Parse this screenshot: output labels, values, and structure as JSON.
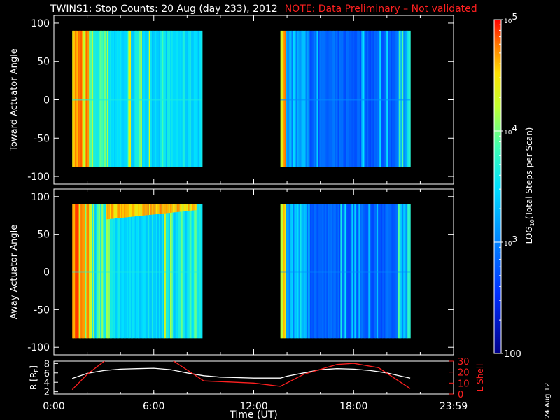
{
  "title": {
    "main": "TWINS1: Stop Counts: 20 Aug (day 233), 2012",
    "note": "NOTE: Data Preliminary – Not validated",
    "note_color": "#ff2020"
  },
  "date_stamp": "24 Aug 12",
  "chart_data": [
    {
      "type": "heatmap",
      "ylabel": "Toward Actuator Angle",
      "xlim": [
        0,
        24
      ],
      "ylim": [
        -110,
        110
      ],
      "yticks": [
        -100,
        -50,
        0,
        50,
        100
      ],
      "data_blocks": [
        {
          "x_start": 1.1,
          "x_end": 8.9,
          "y_start": -88,
          "y_end": 90,
          "dominant": "cyan-yellow-red"
        },
        {
          "x_start": 13.6,
          "x_end": 21.4,
          "y_start": -88,
          "y_end": 90,
          "dominant": "blue"
        }
      ],
      "note": "no data between 8.9 and 13.6 UT"
    },
    {
      "type": "heatmap",
      "ylabel": "Away Actuator Angle",
      "xlim": [
        0,
        24
      ],
      "ylim": [
        -110,
        110
      ],
      "yticks": [
        -100,
        -50,
        0,
        50,
        100
      ],
      "data_blocks": [
        {
          "x_start": 1.1,
          "x_end": 8.9,
          "y_start": -88,
          "y_end": 90,
          "dominant": "cyan-yellow-red"
        },
        {
          "x_start": 13.6,
          "x_end": 21.4,
          "y_start": -88,
          "y_end": 90,
          "dominant": "blue"
        }
      ]
    },
    {
      "type": "line",
      "xlabel": "Time (UT)",
      "xlim": [
        0,
        24
      ],
      "xticks": [
        "0:00",
        "6:00",
        "12:00",
        "18:00",
        "23:59"
      ],
      "xtick_values": [
        0,
        6,
        12,
        18,
        24
      ],
      "left_axis": {
        "label": "R [R",
        "label_sub": "E",
        "label_end": "]",
        "ylim": [
          1.5,
          8.5
        ],
        "yticks": [
          2,
          4,
          6,
          8
        ],
        "color": "#ffffff"
      },
      "right_axis": {
        "label": "L Shell",
        "ylim": [
          0,
          30
        ],
        "yticks": [
          0,
          10,
          20,
          30
        ],
        "color": "#ff2020"
      },
      "series": [
        {
          "axis": "left",
          "color": "#ffffff",
          "x": [
            1.1,
            2,
            3,
            4,
            5,
            6,
            7,
            8,
            9,
            10,
            11,
            12,
            13,
            13.6,
            14,
            15,
            16,
            17,
            18,
            19,
            20,
            21,
            21.4
          ],
          "y": [
            4.8,
            5.9,
            6.5,
            6.8,
            6.9,
            7.0,
            6.7,
            6.0,
            5.4,
            5.1,
            5.0,
            4.9,
            4.9,
            4.9,
            5.3,
            6.0,
            6.7,
            6.9,
            6.8,
            6.5,
            6.0,
            5.2,
            4.9
          ]
        },
        {
          "axis": "right",
          "color": "#ff2020",
          "x": [
            1.1,
            2,
            3.2,
            7.0,
            8.0,
            9.0,
            12.0,
            13.6,
            15,
            17,
            18,
            19.5,
            21.4
          ],
          "y": [
            4,
            18,
            32,
            32,
            22,
            12,
            10,
            7,
            18,
            27,
            28,
            24,
            5
          ]
        }
      ]
    }
  ],
  "colorbar": {
    "label": "LOG10(Total Steps per Scan)",
    "label_pre": "LOG",
    "label_sub": "10",
    "label_post": "(Total Steps per Scan)",
    "ticks": [
      {
        "base": "10",
        "exp": "5",
        "value": 5
      },
      {
        "base": "10",
        "exp": "4",
        "value": 4
      },
      {
        "base": "10",
        "exp": "3",
        "value": 3
      },
      {
        "base": "100",
        "exp": "",
        "value": 2
      }
    ],
    "range": [
      2,
      5
    ]
  },
  "colors": {
    "axis": "#ffffff",
    "background": "#000000",
    "lshell": "#ff2020"
  }
}
